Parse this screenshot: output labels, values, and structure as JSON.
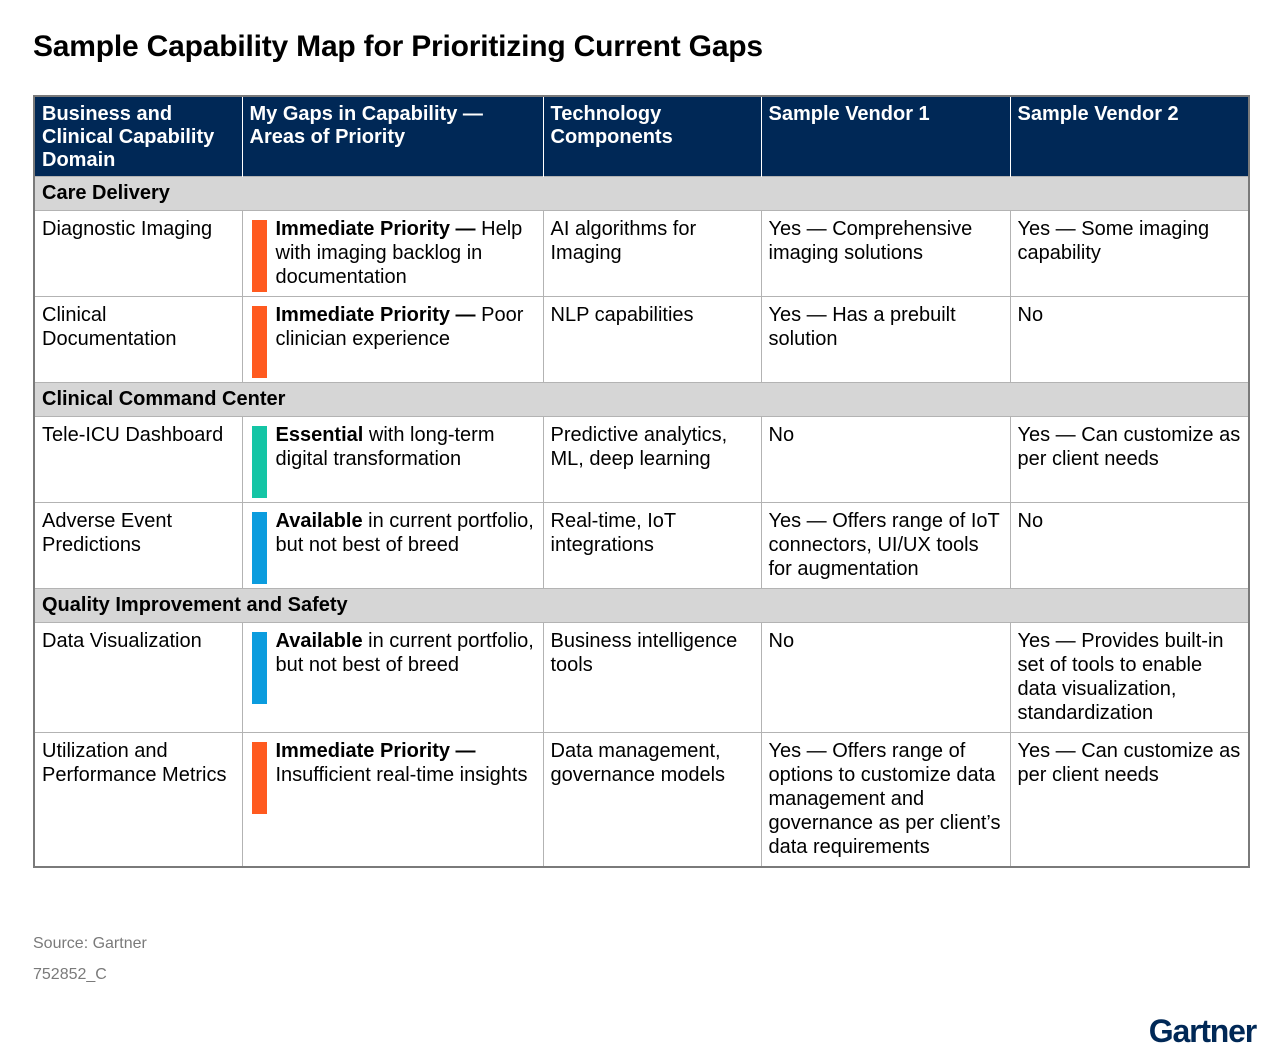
{
  "title": "Sample Capability Map for Prioritizing Current Gaps",
  "table": {
    "headers": [
      "Business and Clinical Capability Domain",
      "My Gaps in Capability — Areas of Priority",
      "Technology Components",
      "Sample Vendor 1",
      "Sample Vendor 2"
    ],
    "sections": [
      {
        "name": "Care Delivery",
        "rows": [
          {
            "domain": "Diagnostic Imaging",
            "gap_bold": "Immediate Priority —",
            "gap_text": "Help with imaging backlog in documentation",
            "gap_color": "#FF5A1F",
            "technology": "AI algorithms for Imaging",
            "vendor1": "Yes — Comprehensive imaging solutions",
            "vendor2": "Yes — Some imaging capability"
          },
          {
            "domain": "Clinical Documentation",
            "gap_bold": "Immediate Priority —",
            "gap_text": "Poor clinician experience",
            "gap_color": "#FF5A1F",
            "technology": "NLP capabilities",
            "vendor1": "Yes — Has a prebuilt solution",
            "vendor2": "No"
          }
        ]
      },
      {
        "name": "Clinical Command Center",
        "rows": [
          {
            "domain": "Tele-ICU Dashboard",
            "gap_bold": "Essential",
            "gap_text": "with long-term digital transformation",
            "gap_color": "#14C5A5",
            "technology": "Predictive analytics, ML, deep learning",
            "vendor1": "No",
            "vendor2": "Yes — Can customize as per client needs"
          },
          {
            "domain": "Adverse Event Predictions",
            "gap_bold": "Available",
            "gap_text": "in current portfolio, but not best of breed",
            "gap_color": "#0B9CDE",
            "technology": "Real-time, IoT integrations",
            "vendor1": "Yes — Offers range of IoT connectors, UI/UX tools for augmentation",
            "vendor2": "No"
          }
        ]
      },
      {
        "name": "Quality Improvement and Safety",
        "rows": [
          {
            "domain": "Data Visualization",
            "gap_bold": "Available",
            "gap_text": "in current portfolio, but not best of breed",
            "gap_color": "#0B9CDE",
            "technology": "Business intelligence tools",
            "vendor1": "No",
            "vendor2": "Yes — Provides built-in set of tools to enable data visualization, standardization"
          },
          {
            "domain": "Utilization and Performance Metrics",
            "gap_bold": "Immediate Priority —",
            "gap_text": "Insufficient real-time insights",
            "gap_color": "#FF5A1F",
            "technology": "Data management, governance models",
            "vendor1": "Yes — Offers range of options to customize data management and governance as per client’s data requirements",
            "vendor2": "Yes — Can customize as per client needs"
          }
        ]
      }
    ]
  },
  "footer": {
    "source": "Source: Gartner",
    "doc_id": "752852_C",
    "logo": "Gartner"
  },
  "colors": {
    "header_bg": "#002856",
    "section_bg": "#D6D6D6",
    "immediate": "#FF5A1F",
    "essential": "#14C5A5",
    "available": "#0B9CDE"
  }
}
